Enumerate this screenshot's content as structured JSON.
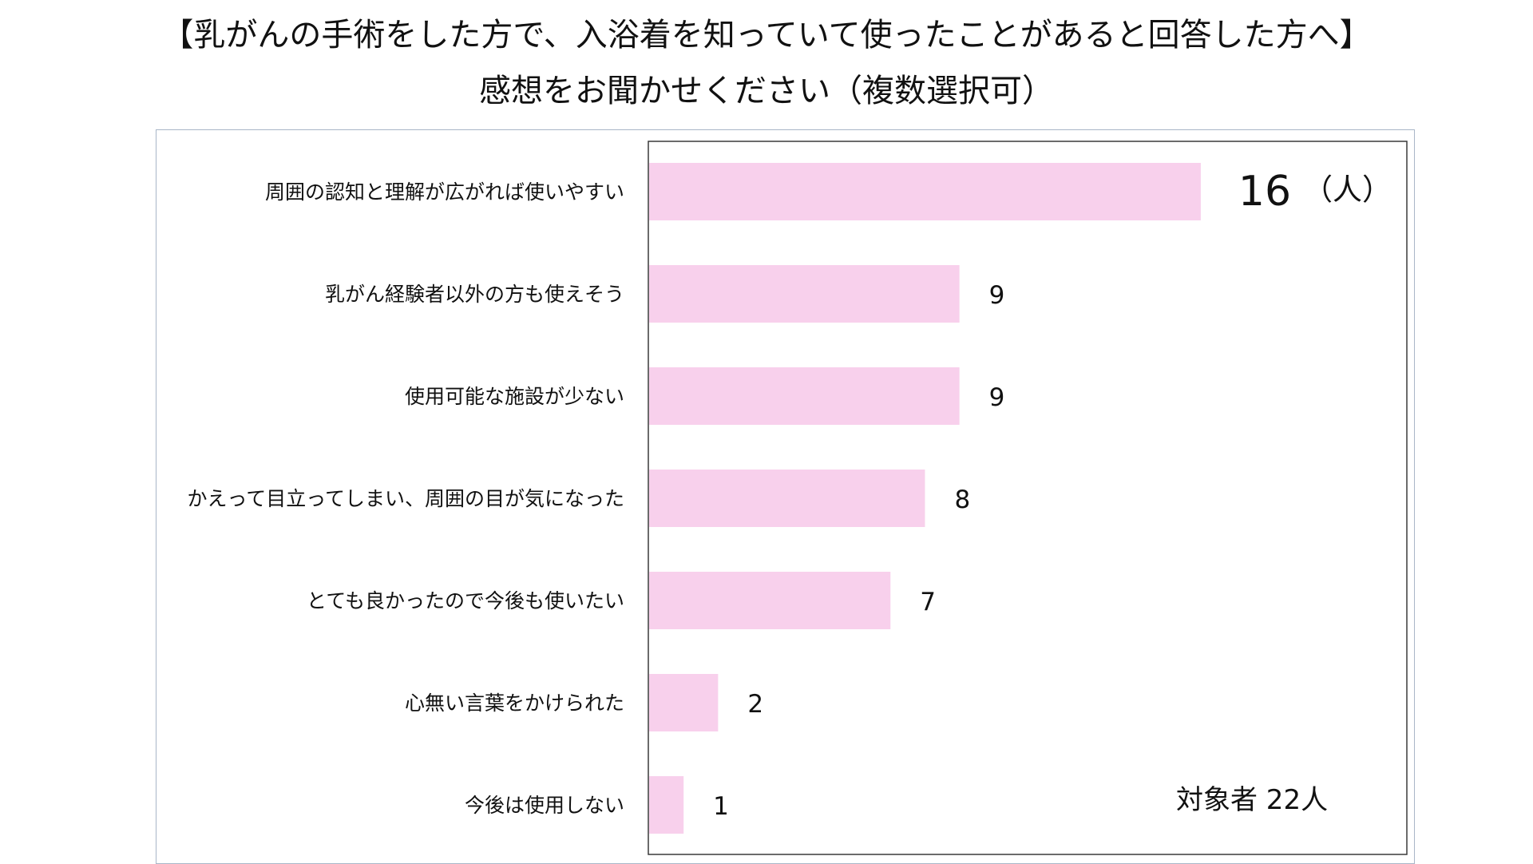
{
  "chart_data": {
    "type": "bar",
    "orientation": "horizontal",
    "title": "【乳がんの手術をした方で、入浴着を知っていて使ったことがあると回答した方へ】",
    "subtitle": "感想をお聞かせください（複数選択可）",
    "categories": [
      "周囲の認知と理解が広がれば使いやすい",
      "乳がん経験者以外の方も使えそう",
      "使用可能な施設が少ない",
      "かえって目立ってしまい、周囲の目が気になった",
      "とても良かったので今後も使いたい",
      "心無い言葉をかけられた",
      "今後は使用しない"
    ],
    "values": [
      16,
      9,
      9,
      8,
      7,
      2,
      1
    ],
    "value_labels": [
      "16",
      "9",
      "9",
      "8",
      "7",
      "2",
      "1"
    ],
    "unit_label": "（人）",
    "annotation": "対象者  22人",
    "xlim": [
      0,
      22
    ],
    "bar_color": "#f8d0ec",
    "grid": false,
    "legend": "none"
  }
}
